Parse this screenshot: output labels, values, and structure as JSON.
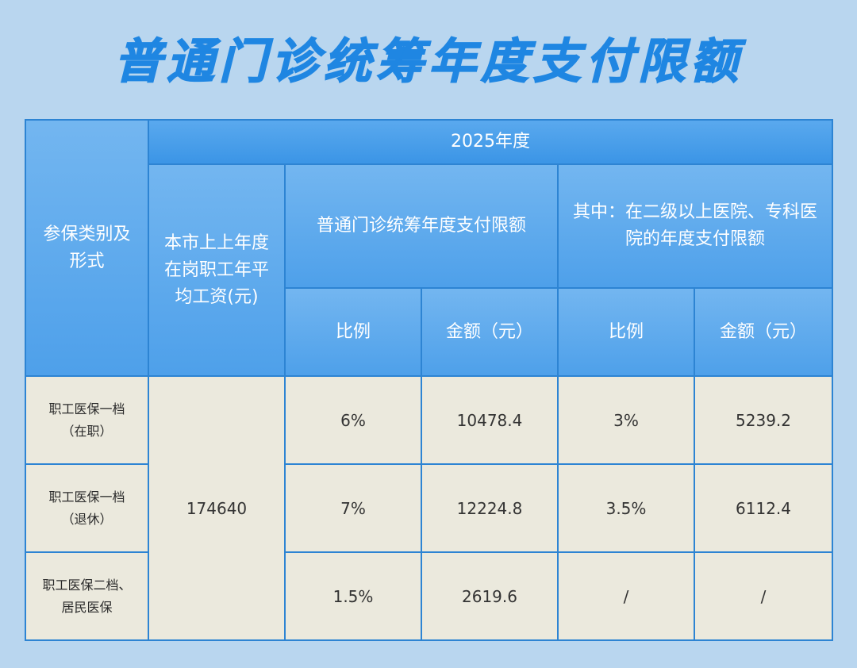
{
  "title": "普通门诊统筹年度支付限额",
  "header": {
    "category": "参保类别及形式",
    "year": "2025年度",
    "avg_wage": "本市上上年度在岗职工年平均工资(元)",
    "general_limit": "普通门诊统筹年度支付限额",
    "secondary_limit": "其中：在二级以上医院、专科医院的年度支付限额",
    "ratio_1": "比例",
    "amount_1": "金额（元）",
    "ratio_2": "比例",
    "amount_2": "金额（元）"
  },
  "avg_wage_value": "174640",
  "rows": [
    {
      "category": "职工医保一档（在职）",
      "ratio": "6%",
      "amount": "10478.4",
      "sec_ratio": "3%",
      "sec_amount": "5239.2"
    },
    {
      "category": "职工医保一档（退休）",
      "ratio": "7%",
      "amount": "12224.8",
      "sec_ratio": "3.5%",
      "sec_amount": "6112.4"
    },
    {
      "category": "职工医保二档、居民医保",
      "ratio": "1.5%",
      "amount": "2619.6",
      "sec_ratio": "/",
      "sec_amount": "/"
    }
  ],
  "colors": {
    "background": "#b9d6ef",
    "title": "#1f86e2",
    "header": "#4ea0ea",
    "body": "#ebe9dd",
    "border": "#2d84d3"
  }
}
